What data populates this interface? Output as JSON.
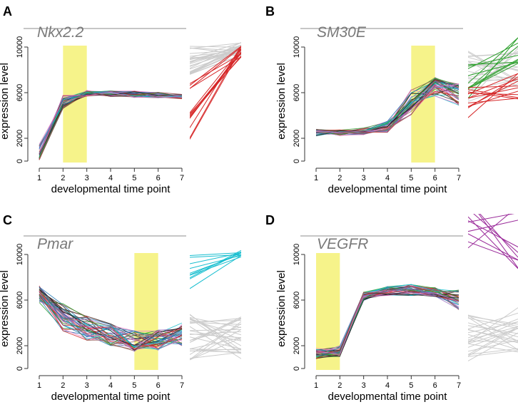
{
  "chart_data": [
    {
      "type": "line",
      "panel_label": "A",
      "title": "Nkx2.2",
      "xlabel": "developmental time point",
      "ylabel": "expression level",
      "x": [
        1,
        2,
        3,
        4,
        5,
        6,
        7
      ],
      "x_ticks": [
        "1",
        "2",
        "3",
        "4",
        "5",
        "6",
        "7"
      ],
      "y_ticks": [
        "0",
        "2000",
        "6000",
        "10000"
      ],
      "y_tick_values": [
        0,
        2000,
        6000,
        10000
      ],
      "ylim": [
        0,
        10000
      ],
      "highlight_interval": [
        2,
        3
      ],
      "highlight_color": "#f6f38a",
      "series_colors": [
        "#d62728",
        "#1f77b4",
        "#2ca02c",
        "#17becf",
        "#9467bd",
        "#222222",
        "#e377c2",
        "#8c564b"
      ],
      "series_base": [
        300,
        5200,
        5950,
        5900,
        5850,
        5800,
        5650
      ],
      "series_spread": [
        1200,
        600,
        250,
        250,
        300,
        250,
        200
      ],
      "series_count": 40,
      "side_panel": {
        "description_colors": [
          "#cccccc",
          "#d62728"
        ],
        "gray_left_range": [
          7000,
          9500
        ],
        "gray_right_range": [
          8700,
          9800
        ],
        "red_left_range": [
          1200,
          6500
        ],
        "red_right_range": [
          8500,
          9500
        ],
        "gray_count": 28,
        "red_count": 14
      }
    },
    {
      "type": "line",
      "panel_label": "B",
      "title": "SM30E",
      "xlabel": "developmental time point",
      "ylabel": "expression level",
      "x": [
        1,
        2,
        3,
        4,
        5,
        6,
        7
      ],
      "x_ticks": [
        "1",
        "2",
        "3",
        "4",
        "5",
        "6",
        "7"
      ],
      "y_ticks": [
        "0",
        "2000",
        "6000",
        "10000"
      ],
      "y_tick_values": [
        0,
        2000,
        6000,
        10000
      ],
      "ylim": [
        0,
        10000
      ],
      "highlight_interval": [
        5,
        6
      ],
      "highlight_color": "#f6f38a",
      "series_colors": [
        "#d62728",
        "#1f77b4",
        "#2ca02c",
        "#17becf",
        "#9467bd",
        "#222222",
        "#e377c2",
        "#8c564b"
      ],
      "series_base": [
        2500,
        2500,
        2600,
        3000,
        5200,
        6500,
        5800
      ],
      "series_spread": [
        300,
        250,
        300,
        500,
        1200,
        900,
        1000
      ],
      "series_count": 40,
      "side_panel": {
        "description_colors": [
          "#cccccc",
          "#2ca02c",
          "#d62728"
        ],
        "gray_left_range": [
          4500,
          9500
        ],
        "gray_right_range": [
          6000,
          9500
        ],
        "green_left_range": [
          5000,
          8000
        ],
        "green_right_range": [
          8000,
          10500
        ],
        "red_left_range": [
          3000,
          6000
        ],
        "red_right_range": [
          5000,
          8000
        ],
        "gray_count": 22,
        "green_count": 10,
        "red_count": 12
      }
    },
    {
      "type": "line",
      "panel_label": "C",
      "title": "Pmar",
      "xlabel": "developmental time point",
      "ylabel": "expression level",
      "x": [
        1,
        2,
        3,
        4,
        5,
        6,
        7
      ],
      "x_ticks": [
        "1",
        "2",
        "3",
        "4",
        "5",
        "6",
        "7"
      ],
      "y_ticks": [
        "0",
        "2000",
        "6000",
        "10000"
      ],
      "y_tick_values": [
        0,
        2000,
        6000,
        10000
      ],
      "ylim": [
        0,
        10000
      ],
      "highlight_interval": [
        5,
        6
      ],
      "highlight_color": "#f6f38a",
      "series_colors": [
        "#d62728",
        "#1f77b4",
        "#2ca02c",
        "#17becf",
        "#9467bd",
        "#222222",
        "#e377c2",
        "#8c564b"
      ],
      "series_base": [
        6500,
        4500,
        3500,
        3000,
        2400,
        2500,
        3000
      ],
      "series_spread": [
        800,
        1200,
        1100,
        1000,
        900,
        900,
        1000
      ],
      "series_count": 42,
      "side_panel": {
        "description_colors": [
          "#cccccc",
          "#17becf"
        ],
        "gray_left_range": [
          500,
          5000
        ],
        "gray_right_range": [
          500,
          4500
        ],
        "cyan_left_range": [
          6800,
          10000
        ],
        "cyan_right_range": [
          9400,
          10300
        ],
        "gray_count": 30,
        "cyan_count": 10
      }
    },
    {
      "type": "line",
      "panel_label": "D",
      "title": "VEGFR",
      "xlabel": "developmental time point",
      "ylabel": "expression level",
      "x": [
        1,
        2,
        3,
        4,
        5,
        6,
        7
      ],
      "x_ticks": [
        "1",
        "2",
        "3",
        "4",
        "5",
        "6",
        "7"
      ],
      "y_ticks": [
        "0",
        "2000",
        "6000",
        "10000"
      ],
      "y_tick_values": [
        0,
        2000,
        6000,
        10000
      ],
      "ylim": [
        0,
        10000
      ],
      "highlight_interval": [
        1,
        2
      ],
      "highlight_color": "#f6f38a",
      "series_colors": [
        "#d62728",
        "#1f77b4",
        "#2ca02c",
        "#17becf",
        "#9467bd",
        "#222222",
        "#e377c2",
        "#8c564b"
      ],
      "series_base": [
        1300,
        1500,
        6300,
        6800,
        6900,
        6700,
        6000
      ],
      "series_spread": [
        500,
        500,
        400,
        400,
        500,
        400,
        900
      ],
      "series_count": 40,
      "side_panel": {
        "description_colors": [
          "#cccccc",
          "#9b2d9b"
        ],
        "gray_left_range": [
          500,
          4000
        ],
        "gray_right_range": [
          1500,
          4500
        ],
        "magenta_left_range": [
          8000,
          12000
        ],
        "magenta_right_range": [
          7000,
          12000
        ],
        "gray_count": 26,
        "magenta_count": 10
      }
    }
  ]
}
